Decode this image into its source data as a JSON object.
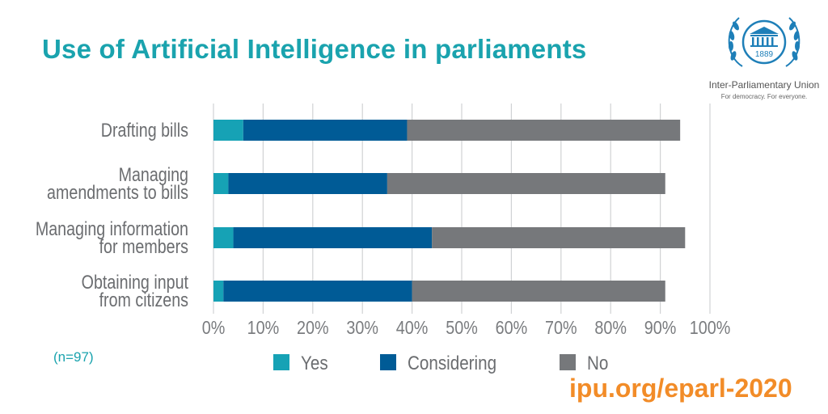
{
  "header": {
    "title": "Use of Artificial Intelligence in parliaments"
  },
  "logo": {
    "year": "1889",
    "org_name": "Inter-Parliamentary Union",
    "tagline": "For democracy. For everyone."
  },
  "footnote": "(n=97)",
  "url": "ipu.org/epar​l-2020",
  "colors": {
    "yes": "#16a2b5",
    "considering": "#005b96",
    "no": "#76787b",
    "title": "#1aa3ae",
    "url": "#f28c28"
  },
  "chart_data": {
    "type": "bar",
    "orientation": "horizontal",
    "stacked": true,
    "categories": [
      [
        "Drafting bills"
      ],
      [
        "Managing",
        "amendments to bills"
      ],
      [
        "Managing information",
        "for members"
      ],
      [
        "Obtaining input",
        "from citizens"
      ]
    ],
    "series": [
      {
        "name": "Yes",
        "color": "#16a2b5",
        "values": [
          6,
          3,
          4,
          2
        ]
      },
      {
        "name": "Considering",
        "color": "#005b96",
        "values": [
          33,
          32,
          40,
          38
        ]
      },
      {
        "name": "No",
        "color": "#76787b",
        "values": [
          55,
          56,
          51,
          51
        ]
      }
    ],
    "xlim": [
      0,
      100
    ],
    "xticks": [
      0,
      10,
      20,
      30,
      40,
      50,
      60,
      70,
      80,
      90,
      100
    ],
    "xtick_labels": [
      "0%",
      "10%",
      "20%",
      "30%",
      "40%",
      "50%",
      "60%",
      "70%",
      "80%",
      "90%",
      "100%"
    ],
    "grid": "vertical",
    "legend": "bottom"
  }
}
